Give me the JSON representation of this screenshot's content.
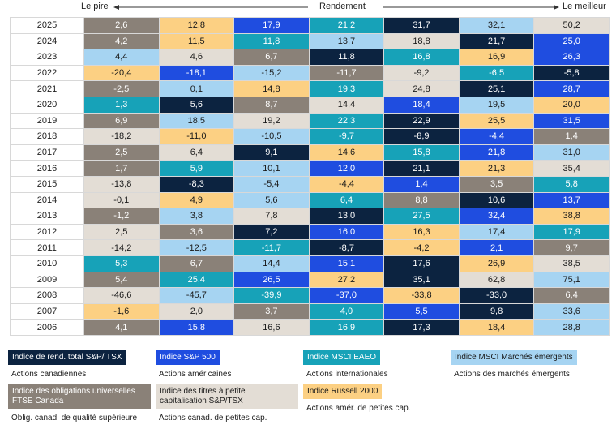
{
  "header": {
    "worst": "Le pire",
    "label": "Rendement",
    "best": "Le meilleur"
  },
  "table": {
    "rows": [
      {
        "year": "2025",
        "cells": [
          {
            "value": "2,6",
            "color": "#8a8178"
          },
          {
            "value": "12,8",
            "color": "#fcd083"
          },
          {
            "value": "17,9",
            "color": "#1f4de0"
          },
          {
            "value": "21,2",
            "color": "#17a2b8"
          },
          {
            "value": "31,7",
            "color": "#0c2340"
          },
          {
            "value": "32,1",
            "color": "#a6d4f2"
          },
          {
            "value": "50,2",
            "color": "#e3ddd5"
          }
        ]
      },
      {
        "year": "2024",
        "cells": [
          {
            "value": "4,2",
            "color": "#8a8178"
          },
          {
            "value": "11,5",
            "color": "#fcd083"
          },
          {
            "value": "11,8",
            "color": "#17a2b8"
          },
          {
            "value": "13,7",
            "color": "#a6d4f2"
          },
          {
            "value": "18,8",
            "color": "#e3ddd5"
          },
          {
            "value": "21,7",
            "color": "#0c2340"
          },
          {
            "value": "25,0",
            "color": "#1f4de0"
          }
        ]
      },
      {
        "year": "2023",
        "cells": [
          {
            "value": "4,4",
            "color": "#a6d4f2"
          },
          {
            "value": "4,6",
            "color": "#e3ddd5"
          },
          {
            "value": "6,7",
            "color": "#8a8178"
          },
          {
            "value": "11,8",
            "color": "#0c2340"
          },
          {
            "value": "16,8",
            "color": "#17a2b8"
          },
          {
            "value": "16,9",
            "color": "#fcd083"
          },
          {
            "value": "26,3",
            "color": "#1f4de0"
          }
        ]
      },
      {
        "year": "2022",
        "cells": [
          {
            "value": "-20,4",
            "color": "#fcd083"
          },
          {
            "value": "-18,1",
            "color": "#1f4de0"
          },
          {
            "value": "-15,2",
            "color": "#a6d4f2"
          },
          {
            "value": "-11,7",
            "color": "#8a8178"
          },
          {
            "value": "-9,2",
            "color": "#e3ddd5"
          },
          {
            "value": "-6,5",
            "color": "#17a2b8"
          },
          {
            "value": "-5,8",
            "color": "#0c2340"
          }
        ]
      },
      {
        "year": "2021",
        "cells": [
          {
            "value": "-2,5",
            "color": "#8a8178"
          },
          {
            "value": "0,1",
            "color": "#a6d4f2"
          },
          {
            "value": "14,8",
            "color": "#fcd083"
          },
          {
            "value": "19,3",
            "color": "#17a2b8"
          },
          {
            "value": "24,8",
            "color": "#e3ddd5"
          },
          {
            "value": "25,1",
            "color": "#0c2340"
          },
          {
            "value": "28,7",
            "color": "#1f4de0"
          }
        ]
      },
      {
        "year": "2020",
        "cells": [
          {
            "value": "1,3",
            "color": "#17a2b8"
          },
          {
            "value": "5,6",
            "color": "#0c2340"
          },
          {
            "value": "8,7",
            "color": "#8a8178"
          },
          {
            "value": "14,4",
            "color": "#e3ddd5"
          },
          {
            "value": "18,4",
            "color": "#1f4de0"
          },
          {
            "value": "19,5",
            "color": "#a6d4f2"
          },
          {
            "value": "20,0",
            "color": "#fcd083"
          }
        ]
      },
      {
        "year": "2019",
        "cells": [
          {
            "value": "6,9",
            "color": "#8a8178"
          },
          {
            "value": "18,5",
            "color": "#a6d4f2"
          },
          {
            "value": "19,2",
            "color": "#e3ddd5"
          },
          {
            "value": "22,3",
            "color": "#17a2b8"
          },
          {
            "value": "22,9",
            "color": "#0c2340"
          },
          {
            "value": "25,5",
            "color": "#fcd083"
          },
          {
            "value": "31,5",
            "color": "#1f4de0"
          }
        ]
      },
      {
        "year": "2018",
        "cells": [
          {
            "value": "-18,2",
            "color": "#e3ddd5"
          },
          {
            "value": "-11,0",
            "color": "#fcd083"
          },
          {
            "value": "-10,5",
            "color": "#a6d4f2"
          },
          {
            "value": "-9,7",
            "color": "#17a2b8"
          },
          {
            "value": "-8,9",
            "color": "#0c2340"
          },
          {
            "value": "-4,4",
            "color": "#1f4de0"
          },
          {
            "value": "1,4",
            "color": "#8a8178"
          }
        ]
      },
      {
        "year": "2017",
        "cells": [
          {
            "value": "2,5",
            "color": "#8a8178"
          },
          {
            "value": "6,4",
            "color": "#e3ddd5"
          },
          {
            "value": "9,1",
            "color": "#0c2340"
          },
          {
            "value": "14,6",
            "color": "#fcd083"
          },
          {
            "value": "15,8",
            "color": "#17a2b8"
          },
          {
            "value": "21,8",
            "color": "#1f4de0"
          },
          {
            "value": "31,0",
            "color": "#a6d4f2"
          }
        ]
      },
      {
        "year": "2016",
        "cells": [
          {
            "value": "1,7",
            "color": "#8a8178"
          },
          {
            "value": "5,9",
            "color": "#17a2b8"
          },
          {
            "value": "10,1",
            "color": "#a6d4f2"
          },
          {
            "value": "12,0",
            "color": "#1f4de0"
          },
          {
            "value": "21,1",
            "color": "#0c2340"
          },
          {
            "value": "21,3",
            "color": "#fcd083"
          },
          {
            "value": "35,4",
            "color": "#e3ddd5"
          }
        ]
      },
      {
        "year": "2015",
        "cells": [
          {
            "value": "-13,8",
            "color": "#e3ddd5"
          },
          {
            "value": "-8,3",
            "color": "#0c2340"
          },
          {
            "value": "-5,4",
            "color": "#a6d4f2"
          },
          {
            "value": "-4,4",
            "color": "#fcd083"
          },
          {
            "value": "1,4",
            "color": "#1f4de0"
          },
          {
            "value": "3,5",
            "color": "#8a8178"
          },
          {
            "value": "5,8",
            "color": "#17a2b8"
          }
        ]
      },
      {
        "year": "2014",
        "cells": [
          {
            "value": "-0,1",
            "color": "#e3ddd5"
          },
          {
            "value": "4,9",
            "color": "#fcd083"
          },
          {
            "value": "5,6",
            "color": "#a6d4f2"
          },
          {
            "value": "6,4",
            "color": "#17a2b8"
          },
          {
            "value": "8,8",
            "color": "#8a8178"
          },
          {
            "value": "10,6",
            "color": "#0c2340"
          },
          {
            "value": "13,7",
            "color": "#1f4de0"
          }
        ]
      },
      {
        "year": "2013",
        "cells": [
          {
            "value": "-1,2",
            "color": "#8a8178"
          },
          {
            "value": "3,8",
            "color": "#a6d4f2"
          },
          {
            "value": "7,8",
            "color": "#e3ddd5"
          },
          {
            "value": "13,0",
            "color": "#0c2340"
          },
          {
            "value": "27,5",
            "color": "#17a2b8"
          },
          {
            "value": "32,4",
            "color": "#1f4de0"
          },
          {
            "value": "38,8",
            "color": "#fcd083"
          }
        ]
      },
      {
        "year": "2012",
        "cells": [
          {
            "value": "2,5",
            "color": "#e3ddd5"
          },
          {
            "value": "3,6",
            "color": "#8a8178"
          },
          {
            "value": "7,2",
            "color": "#0c2340"
          },
          {
            "value": "16,0",
            "color": "#1f4de0"
          },
          {
            "value": "16,3",
            "color": "#fcd083"
          },
          {
            "value": "17,4",
            "color": "#a6d4f2"
          },
          {
            "value": "17,9",
            "color": "#17a2b8"
          }
        ]
      },
      {
        "year": "2011",
        "cells": [
          {
            "value": "-14,2",
            "color": "#e3ddd5"
          },
          {
            "value": "-12,5",
            "color": "#a6d4f2"
          },
          {
            "value": "-11,7",
            "color": "#17a2b8"
          },
          {
            "value": "-8,7",
            "color": "#0c2340"
          },
          {
            "value": "-4,2",
            "color": "#fcd083"
          },
          {
            "value": "2,1",
            "color": "#1f4de0"
          },
          {
            "value": "9,7",
            "color": "#8a8178"
          }
        ]
      },
      {
        "year": "2010",
        "cells": [
          {
            "value": "5,3",
            "color": "#17a2b8"
          },
          {
            "value": "6,7",
            "color": "#8a8178"
          },
          {
            "value": "14,4",
            "color": "#a6d4f2"
          },
          {
            "value": "15,1",
            "color": "#1f4de0"
          },
          {
            "value": "17,6",
            "color": "#0c2340"
          },
          {
            "value": "26,9",
            "color": "#fcd083"
          },
          {
            "value": "38,5",
            "color": "#e3ddd5"
          }
        ]
      },
      {
        "year": "2009",
        "cells": [
          {
            "value": "5,4",
            "color": "#8a8178"
          },
          {
            "value": "25,4",
            "color": "#17a2b8"
          },
          {
            "value": "26,5",
            "color": "#1f4de0"
          },
          {
            "value": "27,2",
            "color": "#fcd083"
          },
          {
            "value": "35,1",
            "color": "#0c2340"
          },
          {
            "value": "62,8",
            "color": "#e3ddd5"
          },
          {
            "value": "75,1",
            "color": "#a6d4f2"
          }
        ]
      },
      {
        "year": "2008",
        "cells": [
          {
            "value": "-46,6",
            "color": "#e3ddd5"
          },
          {
            "value": "-45,7",
            "color": "#a6d4f2"
          },
          {
            "value": "-39,9",
            "color": "#17a2b8"
          },
          {
            "value": "-37,0",
            "color": "#1f4de0"
          },
          {
            "value": "-33,8",
            "color": "#fcd083"
          },
          {
            "value": "-33,0",
            "color": "#0c2340"
          },
          {
            "value": "6,4",
            "color": "#8a8178"
          }
        ]
      },
      {
        "year": "2007",
        "cells": [
          {
            "value": "-1,6",
            "color": "#fcd083"
          },
          {
            "value": "2,0",
            "color": "#e3ddd5"
          },
          {
            "value": "3,7",
            "color": "#8a8178"
          },
          {
            "value": "4,0",
            "color": "#17a2b8"
          },
          {
            "value": "5,5",
            "color": "#1f4de0"
          },
          {
            "value": "9,8",
            "color": "#0c2340"
          },
          {
            "value": "33,6",
            "color": "#a6d4f2"
          }
        ]
      },
      {
        "year": "2006",
        "cells": [
          {
            "value": "4,1",
            "color": "#8a8178"
          },
          {
            "value": "15,8",
            "color": "#1f4de0"
          },
          {
            "value": "16,6",
            "color": "#e3ddd5"
          },
          {
            "value": "16,9",
            "color": "#17a2b8"
          },
          {
            "value": "17,3",
            "color": "#0c2340"
          },
          {
            "value": "18,4",
            "color": "#fcd083"
          },
          {
            "value": "28,8",
            "color": "#a6d4f2"
          }
        ]
      }
    ]
  },
  "legend": [
    {
      "name": "Indice de rend. total S&P/ TSX",
      "description": "Actions canadiennes",
      "color": "#0c2340"
    },
    {
      "name": "Indice S&P 500",
      "description": "Actions américaines",
      "color": "#1f4de0"
    },
    {
      "name": "Indice MSCI EAEO",
      "description": "Actions internationales",
      "color": "#17a2b8"
    },
    {
      "name": "Indice MSCI Marchés émergents",
      "description": "Actions des marchés émergents",
      "color": "#a6d4f2"
    },
    {
      "name": "Indice des obligations universelles FTSE Canada",
      "description": "Oblig. canad. de qualité supérieure",
      "color": "#8a8178"
    },
    {
      "name": "Indice des titres à petite capitalisation S&P/TSX",
      "description": "Actions canad. de petites cap.",
      "color": "#e3ddd5"
    },
    {
      "name": "Indice Russell 2000",
      "description": "Actions amér. de petites cap.",
      "color": "#fcd083"
    }
  ]
}
